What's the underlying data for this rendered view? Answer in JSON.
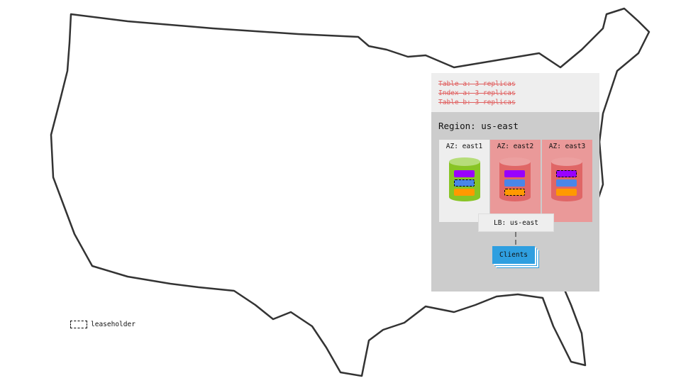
{
  "tables": [
    "Table a: 3 replicas",
    "Index a: 3 replicas",
    "Table b: 3 replicas"
  ],
  "region": {
    "label": "Region: us-east"
  },
  "azs": [
    {
      "label": "AZ: east1",
      "status": "healthy",
      "leaseholder": "blue"
    },
    {
      "label": "AZ: east2",
      "status": "failed",
      "leaseholder": "orange"
    },
    {
      "label": "AZ: east3",
      "status": "failed",
      "leaseholder": "purple"
    }
  ],
  "lb": {
    "label": "LB: us-east"
  },
  "clients": {
    "label": "Clients"
  },
  "legend": {
    "label": "leaseholder"
  },
  "colors": {
    "healthy": "#88c425",
    "failed": "#e06666",
    "failed_bg": "#ea9999",
    "purple": "#9900ff",
    "blue": "#4a86e8",
    "orange": "#ff9900",
    "clients": "#2f9fe0"
  }
}
